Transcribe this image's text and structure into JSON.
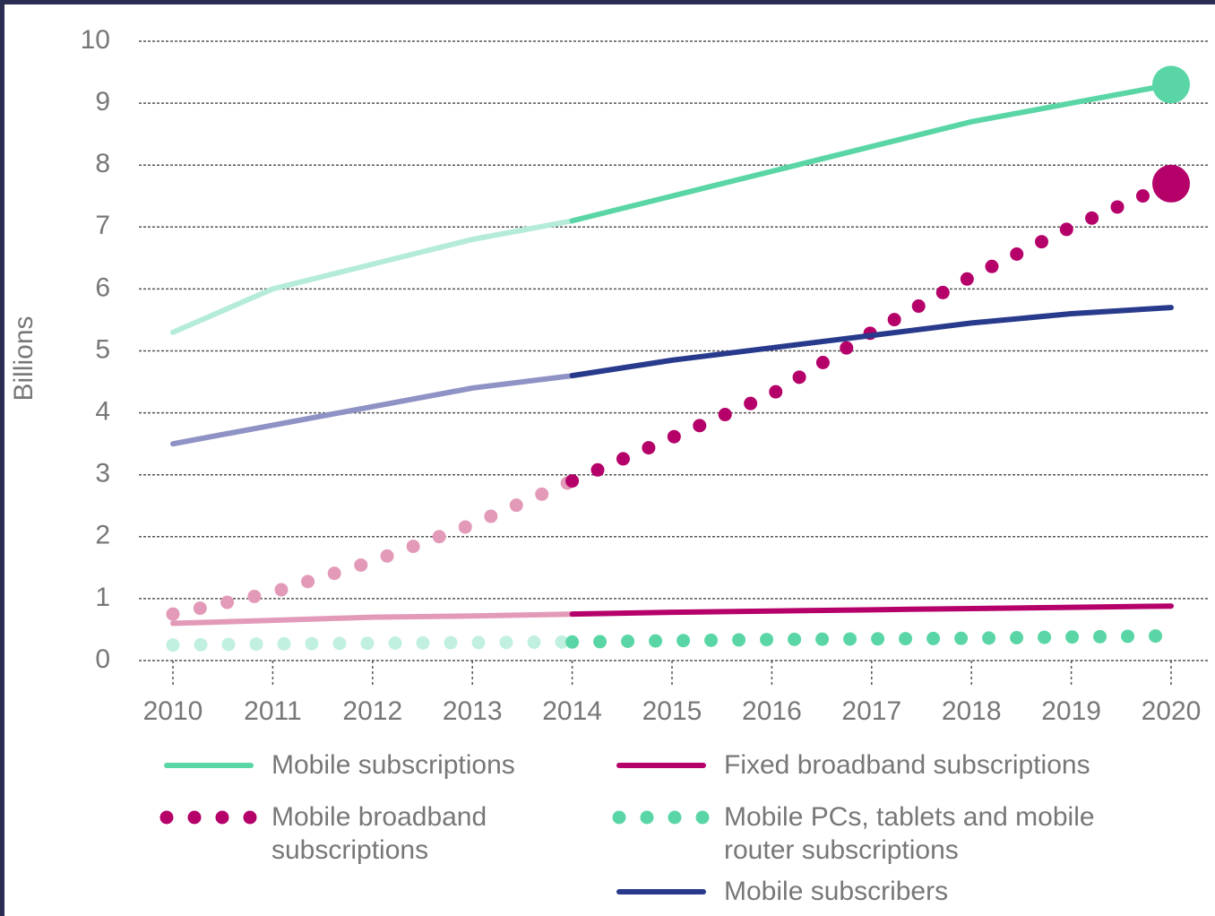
{
  "chart_data": {
    "type": "line",
    "y_label": "Billions",
    "x": [
      2010,
      2011,
      2012,
      2013,
      2014,
      2015,
      2016,
      2017,
      2018,
      2019,
      2020
    ],
    "xlim": [
      2010,
      2020
    ],
    "xticks": [
      2010,
      2011,
      2012,
      2013,
      2014,
      2015,
      2016,
      2017,
      2018,
      2019,
      2020
    ],
    "ylim": [
      0,
      10
    ],
    "yticks": [
      0,
      1,
      2,
      3,
      4,
      5,
      6,
      7,
      8,
      9,
      10
    ],
    "grid": true,
    "forecast_start": 2014,
    "series": [
      {
        "name": "Mobile subscriptions",
        "color": "#5ad6a6",
        "light_color": "#b5ecd9",
        "style": "solid",
        "end_marker": true,
        "values": [
          5.3,
          6.0,
          6.4,
          6.8,
          7.1,
          7.5,
          7.9,
          8.3,
          8.7,
          9.0,
          9.3
        ]
      },
      {
        "name": "Fixed broadband subscriptions",
        "color": "#b5006a",
        "light_color": "#e39ab8",
        "style": "solid",
        "end_marker": false,
        "values": [
          0.6,
          0.65,
          0.7,
          0.72,
          0.75,
          0.78,
          0.8,
          0.82,
          0.84,
          0.86,
          0.88
        ]
      },
      {
        "name": "Mobile broadband subscriptions",
        "color": "#b5006a",
        "light_color": "#e39ab8",
        "style": "dotted",
        "end_marker": true,
        "values": [
          0.75,
          1.1,
          1.6,
          2.2,
          2.9,
          3.6,
          4.3,
          5.3,
          6.2,
          7.0,
          7.7
        ]
      },
      {
        "name": "Mobile PCs, tablets and mobile router subscriptions",
        "color": "#5ad6a6",
        "light_color": "#c1f0e0",
        "style": "dotted",
        "end_marker": false,
        "values": [
          0.25,
          0.27,
          0.28,
          0.29,
          0.3,
          0.32,
          0.34,
          0.35,
          0.36,
          0.38,
          0.4
        ]
      },
      {
        "name": "Mobile subscribers",
        "color": "#283a8c",
        "light_color": "#8f92c4",
        "style": "solid",
        "end_marker": false,
        "values": [
          3.5,
          3.8,
          4.1,
          4.4,
          4.6,
          4.85,
          5.05,
          5.25,
          5.45,
          5.6,
          5.7
        ]
      }
    ]
  }
}
